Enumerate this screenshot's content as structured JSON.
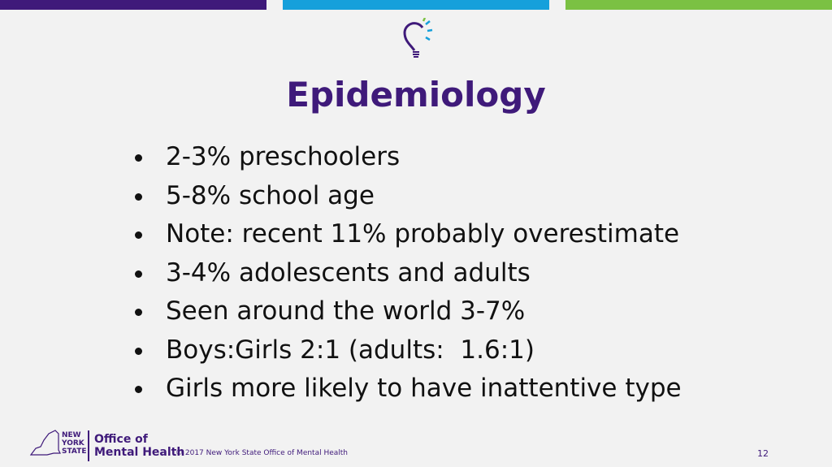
{
  "header": {
    "title": "Epidemiology"
  },
  "bullets": [
    "2-3% preschoolers",
    "5-8% school age",
    "Note: recent 11% probably overestimate",
    "3-4% adolescents and adults",
    "Seen around the world 3-7%",
    "Boys:Girls 2:1 (adults:  1.6:1)",
    "Girls more likely to have inattentive type"
  ],
  "footer": {
    "state_logo": [
      "NEW",
      "YORK",
      "STATE"
    ],
    "office": [
      "Office of",
      "Mental Health"
    ],
    "copyright": "© 2017 New York State Office of Mental Health",
    "page_number": "12"
  }
}
